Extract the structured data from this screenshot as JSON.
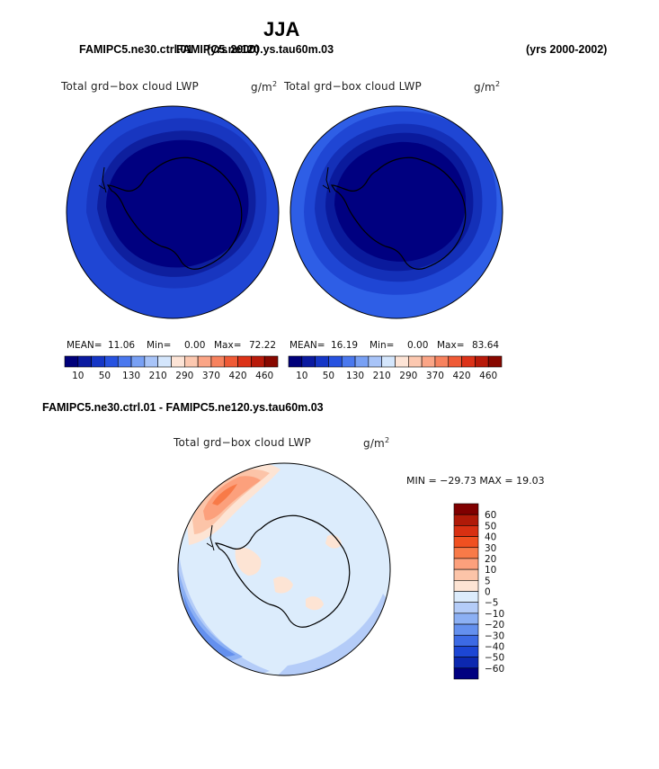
{
  "header": {
    "title": "JJA",
    "left_caption_a": "FAMIPC5.ne30.ctrl.01",
    "left_caption_b": "FAMIPC5.ne120.ys.tau60m.03",
    "left_years": "(yrs 2000)",
    "right_years": "(yrs 2000-2002)"
  },
  "panel1": {
    "variable": "Total grd−box cloud LWP",
    "units": "g/m",
    "units_sup": "2",
    "mean_label": "MEAN=",
    "mean": "11.06",
    "min_label": "Min=",
    "min": "0.00",
    "max_label": "Max=",
    "max": "72.22"
  },
  "panel2": {
    "variable": "Total grd−box cloud LWP",
    "units": "g/m",
    "units_sup": "2",
    "mean_label": "MEAN=",
    "mean": "16.19",
    "min_label": "Min=",
    "min": "0.00",
    "max_label": "Max=",
    "max": "83.64"
  },
  "colorbar_top": {
    "colors": [
      "#00007a",
      "#0a1aa0",
      "#1536c6",
      "#2752e0",
      "#4a78ee",
      "#78a0f4",
      "#a8c4f8",
      "#d4e6fc",
      "#fde4d6",
      "#fcc8b0",
      "#fba586",
      "#f7825e",
      "#ef5a36",
      "#dc3218",
      "#b81a0a",
      "#880800"
    ],
    "labels": [
      "10",
      "50",
      "130",
      "210",
      "290",
      "370",
      "420",
      "460"
    ]
  },
  "diff": {
    "caption": "FAMIPC5.ne30.ctrl.01 - FAMIPC5.ne120.ys.tau60m.03",
    "variable": "Total grd−box cloud LWP",
    "units": "g/m",
    "units_sup": "2",
    "minmax": "MIN = −29.73  MAX =  19.03"
  },
  "colorbar_diff": {
    "colors": [
      "#800000",
      "#b01a08",
      "#d83012",
      "#f05020",
      "#f87a48",
      "#fca07c",
      "#fcc4a8",
      "#fde4d4",
      "#dcecfc",
      "#b4ccf8",
      "#8cb0f4",
      "#6490ee",
      "#3c6ae4",
      "#1c46d4",
      "#0c28b0",
      "#000080"
    ],
    "labels": [
      "60",
      "50",
      "40",
      "30",
      "20",
      "10",
      "5",
      "0",
      "−5",
      "−10",
      "−20",
      "−30",
      "−40",
      "−50",
      "−60"
    ]
  }
}
